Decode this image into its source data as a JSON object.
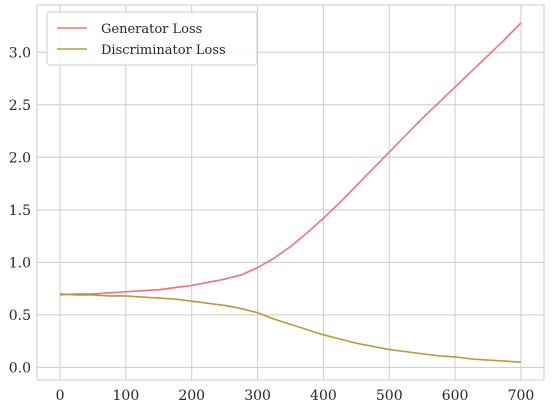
{
  "chart_data": {
    "type": "line",
    "title": "",
    "xlabel": "",
    "ylabel": "",
    "xlim": [
      -35,
      735
    ],
    "ylim": [
      -0.12,
      3.45
    ],
    "xticks": [
      0,
      100,
      200,
      300,
      400,
      500,
      600,
      700
    ],
    "yticks": [
      0.0,
      0.5,
      1.0,
      1.5,
      2.0,
      2.5,
      3.0
    ],
    "xtick_labels": [
      "0",
      "100",
      "200",
      "300",
      "400",
      "500",
      "600",
      "700"
    ],
    "ytick_labels": [
      "0.0",
      "0.5",
      "1.0",
      "1.5",
      "2.0",
      "2.5",
      "3.0"
    ],
    "grid": true,
    "legend_position": "top-left",
    "x": [
      0,
      25,
      50,
      75,
      100,
      125,
      150,
      175,
      200,
      225,
      250,
      275,
      300,
      325,
      350,
      375,
      400,
      425,
      450,
      475,
      500,
      525,
      550,
      575,
      600,
      625,
      650,
      675,
      700
    ],
    "series": [
      {
        "name": "Generator Loss",
        "color": "#f0717f",
        "values": [
          0.69,
          0.7,
          0.7,
          0.71,
          0.72,
          0.73,
          0.74,
          0.76,
          0.78,
          0.81,
          0.84,
          0.88,
          0.95,
          1.04,
          1.15,
          1.28,
          1.42,
          1.57,
          1.73,
          1.89,
          2.05,
          2.21,
          2.37,
          2.52,
          2.67,
          2.82,
          2.97,
          3.12,
          3.28
        ]
      },
      {
        "name": "Discriminator Loss",
        "color": "#b59a3a",
        "values": [
          0.7,
          0.69,
          0.69,
          0.68,
          0.68,
          0.67,
          0.66,
          0.65,
          0.63,
          0.61,
          0.59,
          0.56,
          0.52,
          0.46,
          0.41,
          0.36,
          0.31,
          0.27,
          0.23,
          0.2,
          0.17,
          0.15,
          0.13,
          0.11,
          0.1,
          0.08,
          0.07,
          0.06,
          0.05
        ]
      }
    ]
  }
}
